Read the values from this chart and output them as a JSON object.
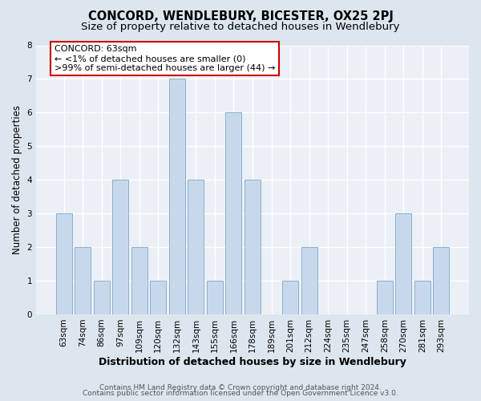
{
  "title": "CONCORD, WENDLEBURY, BICESTER, OX25 2PJ",
  "subtitle": "Size of property relative to detached houses in Wendlebury",
  "xlabel": "Distribution of detached houses by size in Wendlebury",
  "ylabel": "Number of detached properties",
  "footer_lines": [
    "Contains HM Land Registry data © Crown copyright and database right 2024.",
    "Contains public sector information licensed under the Open Government Licence v3.0."
  ],
  "bin_labels": [
    "63sqm",
    "74sqm",
    "86sqm",
    "97sqm",
    "109sqm",
    "120sqm",
    "132sqm",
    "143sqm",
    "155sqm",
    "166sqm",
    "178sqm",
    "189sqm",
    "201sqm",
    "212sqm",
    "224sqm",
    "235sqm",
    "247sqm",
    "258sqm",
    "270sqm",
    "281sqm",
    "293sqm"
  ],
  "bar_heights": [
    3,
    2,
    1,
    4,
    2,
    1,
    7,
    4,
    1,
    6,
    4,
    0,
    1,
    2,
    0,
    0,
    0,
    1,
    3,
    1,
    2
  ],
  "bar_color": "#c8d8eb",
  "bar_edge_color": "#7ba8c8",
  "annotation_box_text": "CONCORD: 63sqm\n← <1% of detached houses are smaller (0)\n>99% of semi-detached houses are larger (44) →",
  "annotation_box_edge_color": "#cc0000",
  "annotation_box_facecolor": "#ffffff",
  "ylim": [
    0,
    8
  ],
  "yticks": [
    0,
    1,
    2,
    3,
    4,
    5,
    6,
    7,
    8
  ],
  "bg_color": "#dde6ef",
  "plot_bg_color": "#eaf0f6",
  "grid_color": "#ffffff",
  "title_fontsize": 10.5,
  "subtitle_fontsize": 9.5,
  "xlabel_fontsize": 9,
  "ylabel_fontsize": 8.5,
  "tick_fontsize": 7.5,
  "annotation_fontsize": 8,
  "footer_fontsize": 6.5
}
